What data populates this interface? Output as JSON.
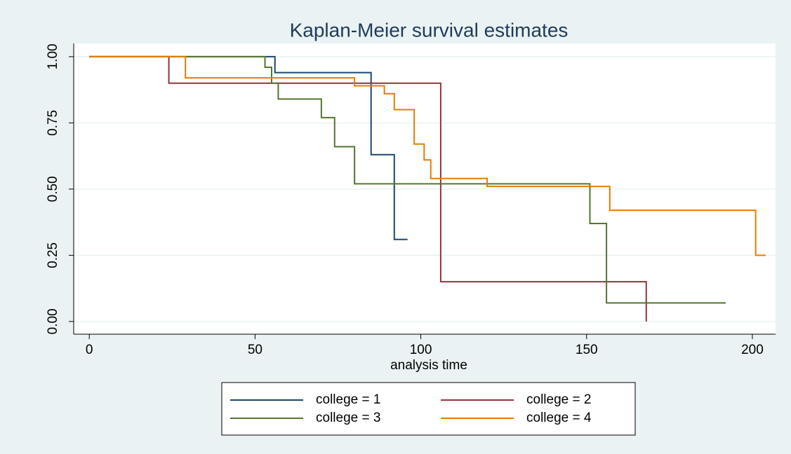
{
  "chart_data": {
    "type": "line",
    "title": "Kaplan-Meier survival estimates",
    "xlabel": "analysis time",
    "xlim": [
      -4.7,
      207
    ],
    "ylim": [
      -0.048,
      1.05
    ],
    "xticks": [
      0,
      50,
      100,
      150,
      200
    ],
    "yticks": [
      {
        "value": 0,
        "label": "0.00"
      },
      {
        "value": 0.25,
        "label": "0.25"
      },
      {
        "value": 0.5,
        "label": "0.50"
      },
      {
        "value": 0.75,
        "label": "0.75"
      },
      {
        "value": 1,
        "label": "1.00"
      }
    ],
    "grid": true,
    "series": [
      {
        "name": "college = 1",
        "color": "#1a476f",
        "x": [
          0,
          56,
          56,
          85,
          85,
          92,
          92,
          96
        ],
        "values": [
          1,
          1,
          0.94,
          0.94,
          0.63,
          0.63,
          0.31,
          0.31
        ]
      },
      {
        "name": "college = 2",
        "color": "#90353b",
        "x": [
          0,
          24,
          24,
          106,
          106,
          168,
          168
        ],
        "values": [
          1,
          1,
          0.9,
          0.9,
          0.15,
          0.15,
          0
        ]
      },
      {
        "name": "college = 3",
        "color": "#55752f",
        "x": [
          0,
          53,
          53,
          55,
          55,
          57,
          57,
          70,
          70,
          74,
          74,
          80,
          80,
          151,
          151,
          156,
          156,
          192
        ],
        "values": [
          1,
          1,
          0.96,
          0.96,
          0.9,
          0.9,
          0.84,
          0.84,
          0.77,
          0.77,
          0.66,
          0.66,
          0.52,
          0.52,
          0.37,
          0.37,
          0.07,
          0.07
        ]
      },
      {
        "name": "college = 4",
        "color": "#e37e00",
        "x": [
          0,
          29,
          29,
          80,
          80,
          89,
          89,
          92,
          92,
          98,
          98,
          101,
          101,
          103,
          103,
          120,
          120,
          157,
          157,
          201,
          201,
          204
        ],
        "values": [
          1,
          1,
          0.92,
          0.92,
          0.89,
          0.89,
          0.86,
          0.86,
          0.8,
          0.8,
          0.67,
          0.67,
          0.61,
          0.61,
          0.54,
          0.54,
          0.51,
          0.51,
          0.42,
          0.42,
          0.25,
          0.25
        ]
      }
    ]
  }
}
